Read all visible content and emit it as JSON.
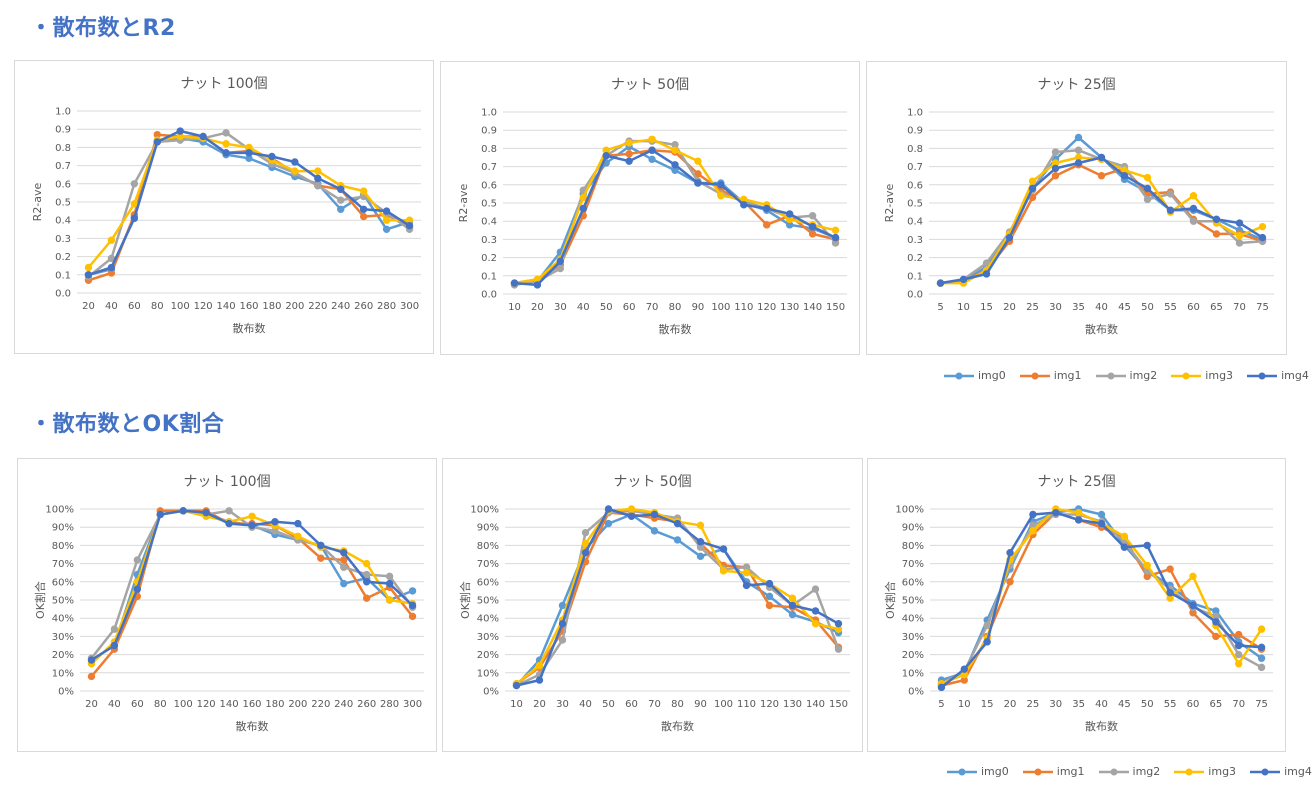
{
  "sections": [
    {
      "title": "・散布数とR2"
    },
    {
      "title": "・散布数とOK割合"
    }
  ],
  "legend": [
    {
      "name": "img0",
      "color": "#5B9BD5"
    },
    {
      "name": "img1",
      "color": "#ED7D31"
    },
    {
      "name": "img2",
      "color": "#A5A5A5"
    },
    {
      "name": "img3",
      "color": "#FFC000"
    },
    {
      "name": "img4",
      "color": "#4472C4"
    }
  ],
  "chart_data": [
    {
      "type": "line",
      "title": "ナット 100個",
      "xlabel": "散布数",
      "ylabel": "R2-ave",
      "categories": [
        "20",
        "40",
        "60",
        "80",
        "100",
        "120",
        "140",
        "160",
        "180",
        "200",
        "220",
        "240",
        "260",
        "280",
        "300"
      ],
      "ylim": [
        0,
        1.0
      ],
      "yticks": [
        "0.0",
        "0.1",
        "0.2",
        "0.3",
        "0.4",
        "0.5",
        "0.6",
        "0.7",
        "0.8",
        "0.9",
        "1.0"
      ],
      "ytick_values": [
        0,
        0.1,
        0.2,
        0.3,
        0.4,
        0.5,
        0.6,
        0.7,
        0.8,
        0.9,
        1.0
      ],
      "grid": true,
      "series": [
        {
          "name": "img0",
          "color": "#5B9BD5",
          "values": [
            0.1,
            0.13,
            0.42,
            0.83,
            0.85,
            0.83,
            0.76,
            0.74,
            0.69,
            0.64,
            0.6,
            0.46,
            0.54,
            0.35,
            0.39
          ]
        },
        {
          "name": "img1",
          "color": "#ED7D31",
          "values": [
            0.07,
            0.11,
            0.43,
            0.87,
            0.86,
            0.86,
            0.77,
            0.78,
            0.74,
            0.66,
            0.59,
            0.57,
            0.42,
            0.43,
            0.36
          ]
        },
        {
          "name": "img2",
          "color": "#A5A5A5",
          "values": [
            0.09,
            0.19,
            0.6,
            0.83,
            0.84,
            0.85,
            0.88,
            0.79,
            0.71,
            0.66,
            0.59,
            0.51,
            0.53,
            0.44,
            0.35
          ]
        },
        {
          "name": "img3",
          "color": "#FFC000",
          "values": [
            0.14,
            0.29,
            0.49,
            0.84,
            0.86,
            0.85,
            0.82,
            0.8,
            0.73,
            0.67,
            0.67,
            0.59,
            0.56,
            0.4,
            0.4
          ]
        },
        {
          "name": "img4",
          "color": "#4472C4",
          "values": [
            0.1,
            0.14,
            0.41,
            0.83,
            0.89,
            0.86,
            0.77,
            0.77,
            0.75,
            0.72,
            0.63,
            0.57,
            0.46,
            0.45,
            0.37
          ]
        }
      ]
    },
    {
      "type": "line",
      "title": "ナット 50個",
      "xlabel": "散布数",
      "ylabel": "R2-ave",
      "categories": [
        "10",
        "20",
        "30",
        "40",
        "50",
        "60",
        "70",
        "80",
        "90",
        "100",
        "110",
        "120",
        "130",
        "140",
        "150"
      ],
      "ylim": [
        0,
        1.0
      ],
      "yticks": [
        "0.0",
        "0.1",
        "0.2",
        "0.3",
        "0.4",
        "0.5",
        "0.6",
        "0.7",
        "0.8",
        "0.9",
        "1.0"
      ],
      "ytick_values": [
        0,
        0.1,
        0.2,
        0.3,
        0.4,
        0.5,
        0.6,
        0.7,
        0.8,
        0.9,
        1.0
      ],
      "grid": true,
      "series": [
        {
          "name": "img0",
          "color": "#5B9BD5",
          "values": [
            0.06,
            0.07,
            0.23,
            0.55,
            0.72,
            0.81,
            0.74,
            0.68,
            0.61,
            0.61,
            0.5,
            0.46,
            0.38,
            0.36,
            0.31
          ]
        },
        {
          "name": "img1",
          "color": "#ED7D31",
          "values": [
            0.06,
            0.08,
            0.16,
            0.43,
            0.76,
            0.77,
            0.79,
            0.78,
            0.66,
            0.57,
            0.51,
            0.38,
            0.43,
            0.33,
            0.3
          ]
        },
        {
          "name": "img2",
          "color": "#A5A5A5",
          "values": [
            0.05,
            0.07,
            0.14,
            0.57,
            0.76,
            0.84,
            0.84,
            0.82,
            0.62,
            0.55,
            0.51,
            0.47,
            0.42,
            0.43,
            0.28
          ]
        },
        {
          "name": "img3",
          "color": "#FFC000",
          "values": [
            0.06,
            0.08,
            0.19,
            0.53,
            0.79,
            0.83,
            0.85,
            0.79,
            0.73,
            0.54,
            0.52,
            0.49,
            0.41,
            0.38,
            0.35
          ]
        },
        {
          "name": "img4",
          "color": "#4472C4",
          "values": [
            0.06,
            0.05,
            0.18,
            0.47,
            0.76,
            0.73,
            0.79,
            0.71,
            0.61,
            0.6,
            0.49,
            0.47,
            0.44,
            0.37,
            0.31
          ]
        }
      ]
    },
    {
      "type": "line",
      "title": "ナット 25個",
      "xlabel": "散布数",
      "ylabel": "R2-ave",
      "categories": [
        "5",
        "10",
        "15",
        "20",
        "25",
        "30",
        "35",
        "40",
        "45",
        "50",
        "55",
        "60",
        "65",
        "70",
        "75"
      ],
      "ylim": [
        0,
        1.0
      ],
      "yticks": [
        "0.0",
        "0.1",
        "0.2",
        "0.3",
        "0.4",
        "0.5",
        "0.6",
        "0.7",
        "0.8",
        "0.9",
        "1.0"
      ],
      "ytick_values": [
        0,
        0.1,
        0.2,
        0.3,
        0.4,
        0.5,
        0.6,
        0.7,
        0.8,
        0.9,
        1.0
      ],
      "grid": true,
      "series": [
        {
          "name": "img0",
          "color": "#5B9BD5",
          "values": [
            0.06,
            0.07,
            0.15,
            0.33,
            0.58,
            0.74,
            0.86,
            0.75,
            0.63,
            0.56,
            0.46,
            0.46,
            0.41,
            0.35,
            0.3
          ]
        },
        {
          "name": "img1",
          "color": "#ED7D31",
          "values": [
            0.06,
            0.07,
            0.13,
            0.29,
            0.53,
            0.65,
            0.71,
            0.65,
            0.69,
            0.55,
            0.56,
            0.41,
            0.33,
            0.33,
            0.29
          ]
        },
        {
          "name": "img2",
          "color": "#A5A5A5",
          "values": [
            0.06,
            0.08,
            0.17,
            0.34,
            0.57,
            0.78,
            0.79,
            0.74,
            0.7,
            0.52,
            0.55,
            0.4,
            0.4,
            0.28,
            0.29
          ]
        },
        {
          "name": "img3",
          "color": "#FFC000",
          "values": [
            0.06,
            0.06,
            0.13,
            0.33,
            0.62,
            0.72,
            0.75,
            0.74,
            0.68,
            0.64,
            0.45,
            0.54,
            0.39,
            0.32,
            0.37
          ]
        },
        {
          "name": "img4",
          "color": "#4472C4",
          "values": [
            0.06,
            0.08,
            0.11,
            0.31,
            0.58,
            0.69,
            0.72,
            0.75,
            0.65,
            0.58,
            0.46,
            0.47,
            0.41,
            0.39,
            0.31
          ]
        }
      ]
    },
    {
      "type": "line",
      "title": "ナット 100個",
      "xlabel": "散布数",
      "ylabel": "OK割合",
      "categories": [
        "20",
        "40",
        "60",
        "80",
        "100",
        "120",
        "140",
        "160",
        "180",
        "200",
        "220",
        "240",
        "260",
        "280",
        "300"
      ],
      "ylim": [
        0,
        100
      ],
      "yticks": [
        "0%",
        "10%",
        "20%",
        "30%",
        "40%",
        "50%",
        "60%",
        "70%",
        "80%",
        "90%",
        "100%"
      ],
      "ytick_values": [
        0,
        10,
        20,
        30,
        40,
        50,
        60,
        70,
        80,
        90,
        100
      ],
      "grid": true,
      "series": [
        {
          "name": "img0",
          "color": "#5B9BD5",
          "values": [
            17,
            25,
            64,
            97,
            99,
            97,
            93,
            91,
            86,
            83,
            80,
            59,
            62,
            50,
            55
          ]
        },
        {
          "name": "img1",
          "color": "#ED7D31",
          "values": [
            8,
            23,
            52,
            99,
            99,
            99,
            92,
            92,
            91,
            84,
            73,
            72,
            51,
            57,
            41
          ]
        },
        {
          "name": "img2",
          "color": "#A5A5A5",
          "values": [
            18,
            34,
            72,
            97,
            99,
            97,
            99,
            90,
            88,
            83,
            80,
            68,
            64,
            63,
            46
          ]
        },
        {
          "name": "img3",
          "color": "#FFC000",
          "values": [
            15,
            27,
            60,
            97,
            99,
            96,
            93,
            96,
            91,
            85,
            79,
            77,
            70,
            50,
            48
          ]
        },
        {
          "name": "img4",
          "color": "#4472C4",
          "values": [
            17,
            25,
            56,
            97,
            99,
            98,
            92,
            91,
            93,
            92,
            80,
            76,
            60,
            59,
            47
          ]
        }
      ]
    },
    {
      "type": "line",
      "title": "ナット 50個",
      "xlabel": "散布数",
      "ylabel": "OK割合",
      "categories": [
        "10",
        "20",
        "30",
        "40",
        "50",
        "60",
        "70",
        "80",
        "90",
        "100",
        "110",
        "120",
        "130",
        "140",
        "150"
      ],
      "ylim": [
        0,
        100
      ],
      "yticks": [
        "0%",
        "10%",
        "20%",
        "30%",
        "40%",
        "50%",
        "60%",
        "70%",
        "80%",
        "90%",
        "100%"
      ],
      "ytick_values": [
        0,
        10,
        20,
        30,
        40,
        50,
        60,
        70,
        80,
        90,
        100
      ],
      "grid": true,
      "series": [
        {
          "name": "img0",
          "color": "#5B9BD5",
          "values": [
            3,
            17,
            47,
            78,
            92,
            97,
            88,
            83,
            74,
            78,
            60,
            52,
            42,
            38,
            32
          ]
        },
        {
          "name": "img1",
          "color": "#ED7D31",
          "values": [
            4,
            13,
            33,
            71,
            98,
            97,
            95,
            93,
            81,
            69,
            68,
            47,
            46,
            39,
            24
          ]
        },
        {
          "name": "img2",
          "color": "#A5A5A5",
          "values": [
            3,
            9,
            28,
            87,
            98,
            99,
            97,
            95,
            79,
            67,
            68,
            57,
            47,
            56,
            23
          ]
        },
        {
          "name": "img3",
          "color": "#FFC000",
          "values": [
            4,
            14,
            39,
            81,
            99,
            100,
            98,
            93,
            91,
            66,
            65,
            59,
            51,
            37,
            34
          ]
        },
        {
          "name": "img4",
          "color": "#4472C4",
          "values": [
            3,
            6,
            37,
            76,
            100,
            96,
            97,
            92,
            82,
            78,
            58,
            59,
            47,
            44,
            37
          ]
        }
      ]
    },
    {
      "type": "line",
      "title": "ナット 25個",
      "xlabel": "散布数",
      "ylabel": "OK割合",
      "categories": [
        "5",
        "10",
        "15",
        "20",
        "25",
        "30",
        "35",
        "40",
        "45",
        "50",
        "55",
        "60",
        "65",
        "70",
        "75"
      ],
      "ylim": [
        0,
        100
      ],
      "yticks": [
        "0%",
        "10%",
        "20%",
        "30%",
        "40%",
        "50%",
        "60%",
        "70%",
        "80%",
        "90%",
        "100%"
      ],
      "ytick_values": [
        0,
        10,
        20,
        30,
        40,
        50,
        60,
        70,
        80,
        90,
        100
      ],
      "grid": true,
      "series": [
        {
          "name": "img0",
          "color": "#5B9BD5",
          "values": [
            6,
            10,
            39,
            67,
            93,
            98,
            100,
            97,
            80,
            66,
            58,
            48,
            44,
            27,
            18
          ]
        },
        {
          "name": "img1",
          "color": "#ED7D31",
          "values": [
            3,
            6,
            30,
            60,
            86,
            98,
            94,
            90,
            84,
            63,
            67,
            43,
            30,
            31,
            23
          ]
        },
        {
          "name": "img2",
          "color": "#A5A5A5",
          "values": [
            4,
            11,
            36,
            69,
            91,
            97,
            97,
            93,
            82,
            66,
            56,
            46,
            41,
            20,
            13
          ]
        },
        {
          "name": "img3",
          "color": "#FFC000",
          "values": [
            4,
            9,
            29,
            72,
            88,
            100,
            98,
            92,
            85,
            69,
            51,
            63,
            36,
            15,
            34
          ]
        },
        {
          "name": "img4",
          "color": "#4472C4",
          "values": [
            2,
            12,
            27,
            76,
            97,
            98,
            94,
            92,
            79,
            80,
            54,
            47,
            38,
            25,
            24
          ]
        }
      ]
    }
  ]
}
